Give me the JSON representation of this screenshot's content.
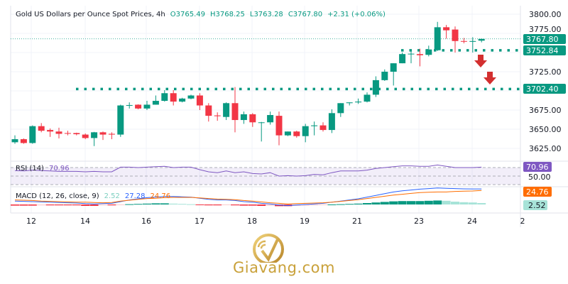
{
  "header": {
    "title": "Gold US Dollars per Ounce Spot Prices, 4h",
    "open": "O3765.49",
    "high": "H3768.25",
    "low": "L3763.28",
    "close": "C3767.80",
    "change": "+2.31 (+0.06%)"
  },
  "colors": {
    "up": "#089981",
    "down": "#f23645",
    "rsi": "#7e57c2",
    "macd": "#2962ff",
    "signal": "#ff6d00",
    "arrow": "#d32f2f",
    "gold": "#c9a13a"
  },
  "chart_data": {
    "type": "candlestick",
    "title": "Gold US Dollars per Ounce Spot Prices, 4h",
    "x_ticks": [
      "12",
      "14",
      "16",
      "17",
      "18",
      "19",
      "21",
      "23",
      "24",
      "2"
    ],
    "y_ticks": [
      "3800.00",
      "3775.00",
      "3725.00",
      "3675.00",
      "3650.00",
      "3625.00"
    ],
    "ylim": [
      3615,
      3800
    ],
    "candles": [
      [
        3633,
        3642,
        3631,
        3637
      ],
      [
        3637,
        3638,
        3631,
        3632
      ],
      [
        3632,
        3655,
        3631,
        3654
      ],
      [
        3654,
        3658,
        3646,
        3648
      ],
      [
        3649,
        3651,
        3640,
        3647
      ],
      [
        3647,
        3652,
        3638,
        3644
      ],
      [
        3645,
        3648,
        3642,
        3644.5
      ],
      [
        3645,
        3645.5,
        3642,
        3643.5
      ],
      [
        3643,
        3644.5,
        3637,
        3638.5
      ],
      [
        3638.5,
        3646.5,
        3628,
        3646
      ],
      [
        3646,
        3647,
        3636,
        3643
      ],
      [
        3644,
        3646,
        3637,
        3643
      ],
      [
        3643,
        3682,
        3640,
        3681
      ],
      [
        3681,
        3685,
        3677,
        3681.5
      ],
      [
        3682,
        3682.5,
        3676,
        3677
      ],
      [
        3677,
        3687,
        3675,
        3682
      ],
      [
        3682,
        3694,
        3682,
        3687
      ],
      [
        3687,
        3701,
        3686,
        3697
      ],
      [
        3697,
        3701,
        3681,
        3686
      ],
      [
        3686,
        3691,
        3685,
        3690
      ],
      [
        3690,
        3695,
        3689,
        3694
      ],
      [
        3694,
        3697,
        3675,
        3681
      ],
      [
        3681,
        3684,
        3660,
        3667.5
      ],
      [
        3668,
        3672,
        3661,
        3667
      ],
      [
        3666,
        3685,
        3662,
        3684
      ],
      [
        3684,
        3705,
        3646,
        3662
      ],
      [
        3662,
        3673,
        3657,
        3669.5
      ],
      [
        3669.5,
        3671,
        3653,
        3659
      ],
      [
        3659,
        3659.5,
        3634,
        3659
      ],
      [
        3659,
        3673,
        3656,
        3668.5
      ],
      [
        3667.5,
        3673,
        3629,
        3642
      ],
      [
        3642,
        3647,
        3641,
        3647
      ],
      [
        3647,
        3648,
        3639,
        3641
      ],
      [
        3641,
        3657,
        3633,
        3654
      ],
      [
        3654,
        3660,
        3642,
        3655
      ],
      [
        3655,
        3659,
        3647,
        3649
      ],
      [
        3649,
        3676,
        3645,
        3671
      ],
      [
        3671,
        3684,
        3666,
        3684
      ],
      [
        3684,
        3685,
        3681,
        3685
      ],
      [
        3685,
        3690,
        3683,
        3686
      ],
      [
        3686,
        3698,
        3685,
        3695
      ],
      [
        3695,
        3719,
        3692,
        3714
      ],
      [
        3714,
        3728,
        3713,
        3725
      ],
      [
        3725,
        3736,
        3707,
        3736
      ],
      [
        3736,
        3750,
        3736,
        3748
      ],
      [
        3748,
        3752,
        3736,
        3748.5
      ],
      [
        3748,
        3755,
        3732,
        3746.5
      ],
      [
        3747,
        3759,
        3745,
        3754
      ],
      [
        3753,
        3790,
        3752,
        3783
      ],
      [
        3783,
        3786,
        3768,
        3779
      ],
      [
        3780,
        3784,
        3750,
        3765
      ],
      [
        3765,
        3769,
        3762,
        3764.5
      ],
      [
        3764,
        3770,
        3750,
        3765
      ],
      [
        3765.49,
        3768.25,
        3763.28,
        3767.8
      ]
    ],
    "levels": [
      {
        "label": "3752.84",
        "value": 3752.84
      },
      {
        "label": "3702.40",
        "value": 3702.4
      }
    ],
    "last_price": {
      "label": "3767.80",
      "value": 3767.8
    },
    "rsi": {
      "label": "RSI (14)",
      "value_label": "70.96",
      "mid_label": "50.00",
      "bands": [
        30,
        50,
        70
      ],
      "values": [
        63,
        62,
        64,
        63,
        62,
        61,
        61,
        61,
        60,
        61,
        60,
        60,
        71,
        71,
        70,
        71,
        72,
        73,
        70,
        71,
        71,
        65,
        60,
        58,
        62,
        58,
        60,
        56,
        55,
        58,
        50,
        51,
        50,
        51,
        54,
        53,
        58,
        62,
        62,
        62,
        64,
        68,
        70,
        72,
        74,
        74,
        73,
        73,
        76,
        73,
        70,
        70,
        70,
        70.96
      ]
    },
    "macd": {
      "label": "MACD (12, 26, close, 9)",
      "hist_label": "2.52",
      "macd_label": "27.28",
      "signal_label": "24.76",
      "macd": [
        6,
        5.5,
        5,
        4.5,
        4,
        3.5,
        3,
        2.5,
        1.5,
        1,
        1.5,
        2,
        5,
        8,
        10,
        12,
        13,
        14,
        14,
        13.5,
        13,
        11,
        9,
        8,
        8,
        7,
        5,
        4,
        2,
        1,
        -1,
        -2,
        -1,
        0,
        1,
        2,
        4,
        6,
        8,
        10,
        13,
        16,
        19,
        22,
        24,
        25.5,
        27,
        28,
        29,
        28.5,
        28,
        27.5,
        27.3,
        27.28
      ],
      "hist": [
        -2,
        -2,
        -2,
        -1.5,
        -1.5,
        -1.5,
        -1.5,
        -1.5,
        -2.5,
        -2.5,
        -1.5,
        -1.5,
        -1,
        0.5,
        1,
        1.5,
        2,
        2,
        1.5,
        1,
        0.5,
        -0.5,
        -1.5,
        -1.5,
        -1,
        -1.5,
        -2,
        -2,
        -2.5,
        -2,
        -3,
        -3,
        -2.5,
        -2,
        -1.5,
        -1,
        0,
        0.5,
        1,
        1.5,
        2.5,
        3.5,
        4.5,
        5.5,
        6,
        6,
        6,
        6.5,
        7,
        6.5,
        5,
        4,
        3.5,
        2.52
      ]
    }
  },
  "logo": {
    "text": "Giavang.com"
  }
}
